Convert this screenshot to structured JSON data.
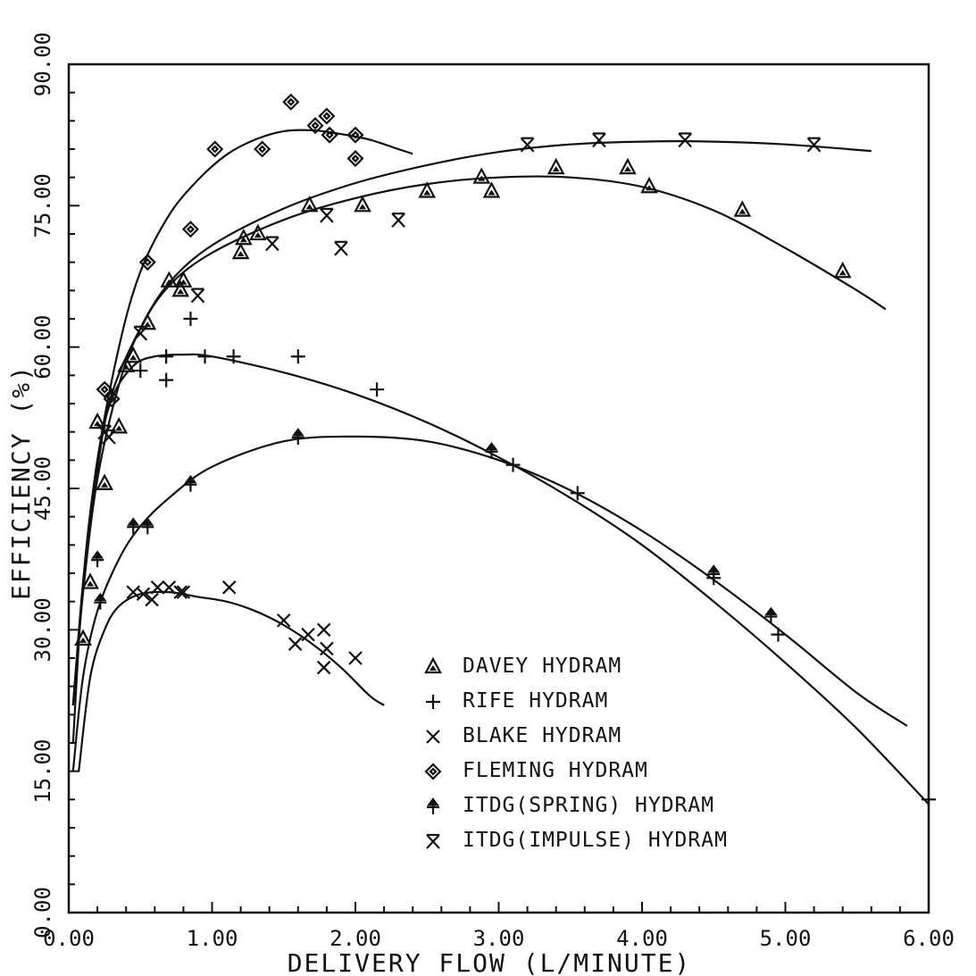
{
  "chart_data": {
    "type": "scatter",
    "title": "",
    "xlabel": "DELIVERY FLOW (L/MINUTE)",
    "ylabel": "EFFICIENCY (%)",
    "xlim": [
      0,
      6
    ],
    "ylim": [
      0,
      90
    ],
    "x_ticks": [
      "0.00",
      "1.00",
      "2.00",
      "3.00",
      "4.00",
      "5.00",
      "6.00"
    ],
    "y_ticks": [
      "0.00",
      "15.00",
      "30.00",
      "45.00",
      "60.00",
      "75.00",
      "90.00"
    ],
    "grid": false,
    "legend_position": "bottom-center",
    "series": [
      {
        "name": "DAVEY HYDRAM",
        "marker": "triangle",
        "points": [
          [
            0.1,
            29
          ],
          [
            0.15,
            35
          ],
          [
            0.2,
            52
          ],
          [
            0.25,
            45.5
          ],
          [
            0.35,
            51.5
          ],
          [
            0.4,
            58
          ],
          [
            0.45,
            59
          ],
          [
            0.55,
            62.5
          ],
          [
            0.7,
            67
          ],
          [
            0.78,
            66
          ],
          [
            0.8,
            67
          ],
          [
            1.2,
            70
          ],
          [
            1.22,
            71.5
          ],
          [
            1.32,
            72
          ],
          [
            1.68,
            75
          ],
          [
            2.05,
            75
          ],
          [
            2.5,
            76.5
          ],
          [
            2.88,
            78
          ],
          [
            2.95,
            76.5
          ],
          [
            3.4,
            79
          ],
          [
            3.9,
            79
          ],
          [
            4.05,
            77
          ],
          [
            4.7,
            74.5
          ],
          [
            5.4,
            68
          ]
        ],
        "fit": [
          [
            0.03,
            22
          ],
          [
            0.1,
            34
          ],
          [
            0.2,
            47
          ],
          [
            0.3,
            55
          ],
          [
            0.5,
            62
          ],
          [
            0.7,
            66.5
          ],
          [
            1.0,
            70
          ],
          [
            1.5,
            73.5
          ],
          [
            2.0,
            75.8
          ],
          [
            2.5,
            77.3
          ],
          [
            3.0,
            78
          ],
          [
            3.5,
            78
          ],
          [
            4.0,
            77
          ],
          [
            4.5,
            74.5
          ],
          [
            5.0,
            70.5
          ],
          [
            5.5,
            66
          ],
          [
            5.7,
            64
          ]
        ]
      },
      {
        "name": "RIFE HYDRAM",
        "marker": "plus",
        "points": [
          [
            0.5,
            57.5
          ],
          [
            0.68,
            59
          ],
          [
            0.68,
            56.5
          ],
          [
            0.85,
            63
          ],
          [
            0.95,
            59
          ],
          [
            1.15,
            59
          ],
          [
            1.6,
            59
          ],
          [
            2.15,
            55.5
          ],
          [
            3.1,
            47.5
          ],
          [
            3.55,
            44.5
          ],
          [
            4.5,
            35.5
          ],
          [
            4.95,
            29.5
          ],
          [
            6.0,
            12
          ]
        ],
        "fit": [
          [
            0.03,
            18
          ],
          [
            0.1,
            35
          ],
          [
            0.2,
            48
          ],
          [
            0.3,
            54.5
          ],
          [
            0.45,
            58
          ],
          [
            0.6,
            59
          ],
          [
            0.8,
            59.2
          ],
          [
            1.0,
            59
          ],
          [
            1.5,
            57.3
          ],
          [
            2.0,
            55
          ],
          [
            2.5,
            52
          ],
          [
            3.0,
            48.3
          ],
          [
            3.5,
            44
          ],
          [
            4.0,
            39
          ],
          [
            4.5,
            33
          ],
          [
            5.0,
            26.5
          ],
          [
            5.5,
            19.5
          ],
          [
            6.0,
            11.5
          ]
        ]
      },
      {
        "name": "BLAKE HYDRAM",
        "marker": "x",
        "points": [
          [
            0.45,
            34
          ],
          [
            0.52,
            33.8
          ],
          [
            0.58,
            33.2
          ],
          [
            0.62,
            34.5
          ],
          [
            0.7,
            34.5
          ],
          [
            0.78,
            34
          ],
          [
            0.8,
            34
          ],
          [
            1.12,
            34.5
          ],
          [
            1.5,
            31
          ],
          [
            1.58,
            28.5
          ],
          [
            1.67,
            29.5
          ],
          [
            1.78,
            30
          ],
          [
            1.78,
            26
          ],
          [
            1.8,
            28
          ],
          [
            2.0,
            27
          ]
        ],
        "fit": [
          [
            0.07,
            15
          ],
          [
            0.15,
            25
          ],
          [
            0.25,
            30
          ],
          [
            0.35,
            32.5
          ],
          [
            0.5,
            33.8
          ],
          [
            0.7,
            34
          ],
          [
            0.9,
            33.5
          ],
          [
            1.1,
            33
          ],
          [
            1.3,
            32
          ],
          [
            1.5,
            30.5
          ],
          [
            1.7,
            28.5
          ],
          [
            1.9,
            26
          ],
          [
            2.1,
            23
          ],
          [
            2.2,
            22
          ]
        ]
      },
      {
        "name": "FLEMING HYDRAM",
        "marker": "diamond",
        "points": [
          [
            0.25,
            55.5
          ],
          [
            0.3,
            54.5
          ],
          [
            0.55,
            69
          ],
          [
            0.85,
            72.5
          ],
          [
            1.02,
            81
          ],
          [
            1.35,
            81
          ],
          [
            1.55,
            86
          ],
          [
            1.72,
            83.5
          ],
          [
            1.8,
            84.5
          ],
          [
            1.82,
            82.5
          ],
          [
            2.0,
            82.5
          ],
          [
            2.0,
            80
          ]
        ],
        "fit": [
          [
            0.03,
            22
          ],
          [
            0.1,
            35
          ],
          [
            0.2,
            48
          ],
          [
            0.35,
            60
          ],
          [
            0.5,
            68
          ],
          [
            0.7,
            74
          ],
          [
            0.9,
            77.7
          ],
          [
            1.1,
            80.4
          ],
          [
            1.3,
            82
          ],
          [
            1.5,
            82.9
          ],
          [
            1.7,
            83
          ],
          [
            1.9,
            82.6
          ],
          [
            2.1,
            82
          ],
          [
            2.3,
            81
          ],
          [
            2.4,
            80.5
          ]
        ]
      },
      {
        "name": "ITDG(SPRING) HYDRAM",
        "marker": "arrow",
        "points": [
          [
            0.2,
            37.5
          ],
          [
            0.22,
            33
          ],
          [
            0.45,
            41
          ],
          [
            0.55,
            41
          ],
          [
            0.85,
            45.5
          ],
          [
            1.6,
            50.5
          ],
          [
            2.95,
            49
          ],
          [
            4.5,
            36
          ],
          [
            4.9,
            31.5
          ]
        ],
        "fit": [
          [
            0.03,
            15
          ],
          [
            0.1,
            25
          ],
          [
            0.2,
            32
          ],
          [
            0.35,
            37.5
          ],
          [
            0.5,
            41
          ],
          [
            0.7,
            44
          ],
          [
            1.0,
            47.3
          ],
          [
            1.5,
            50
          ],
          [
            2.0,
            50.5
          ],
          [
            2.5,
            50
          ],
          [
            3.0,
            48
          ],
          [
            3.5,
            44.8
          ],
          [
            4.0,
            40.5
          ],
          [
            4.5,
            35.3
          ],
          [
            5.0,
            29.5
          ],
          [
            5.5,
            23.3
          ],
          [
            5.85,
            19.8
          ]
        ]
      },
      {
        "name": "ITDG(IMPULSE) HYDRAM",
        "marker": "hourglass",
        "points": [
          [
            0.25,
            51
          ],
          [
            0.28,
            50.5
          ],
          [
            0.5,
            61.5
          ],
          [
            0.9,
            65.5
          ],
          [
            1.42,
            71
          ],
          [
            1.8,
            74
          ],
          [
            1.9,
            70.5
          ],
          [
            2.3,
            73.5
          ],
          [
            3.2,
            81.5
          ],
          [
            3.7,
            82
          ],
          [
            4.3,
            82
          ],
          [
            5.2,
            81.5
          ]
        ],
        "fit": [
          [
            0.03,
            22
          ],
          [
            0.1,
            34
          ],
          [
            0.2,
            46
          ],
          [
            0.35,
            56
          ],
          [
            0.5,
            62
          ],
          [
            0.7,
            66.8
          ],
          [
            1.0,
            70.8
          ],
          [
            1.5,
            74.7
          ],
          [
            2.0,
            77.4
          ],
          [
            2.5,
            79.3
          ],
          [
            3.0,
            80.7
          ],
          [
            3.5,
            81.5
          ],
          [
            4.0,
            81.8
          ],
          [
            4.5,
            81.8
          ],
          [
            5.0,
            81.5
          ],
          [
            5.6,
            80.8
          ]
        ]
      }
    ]
  }
}
